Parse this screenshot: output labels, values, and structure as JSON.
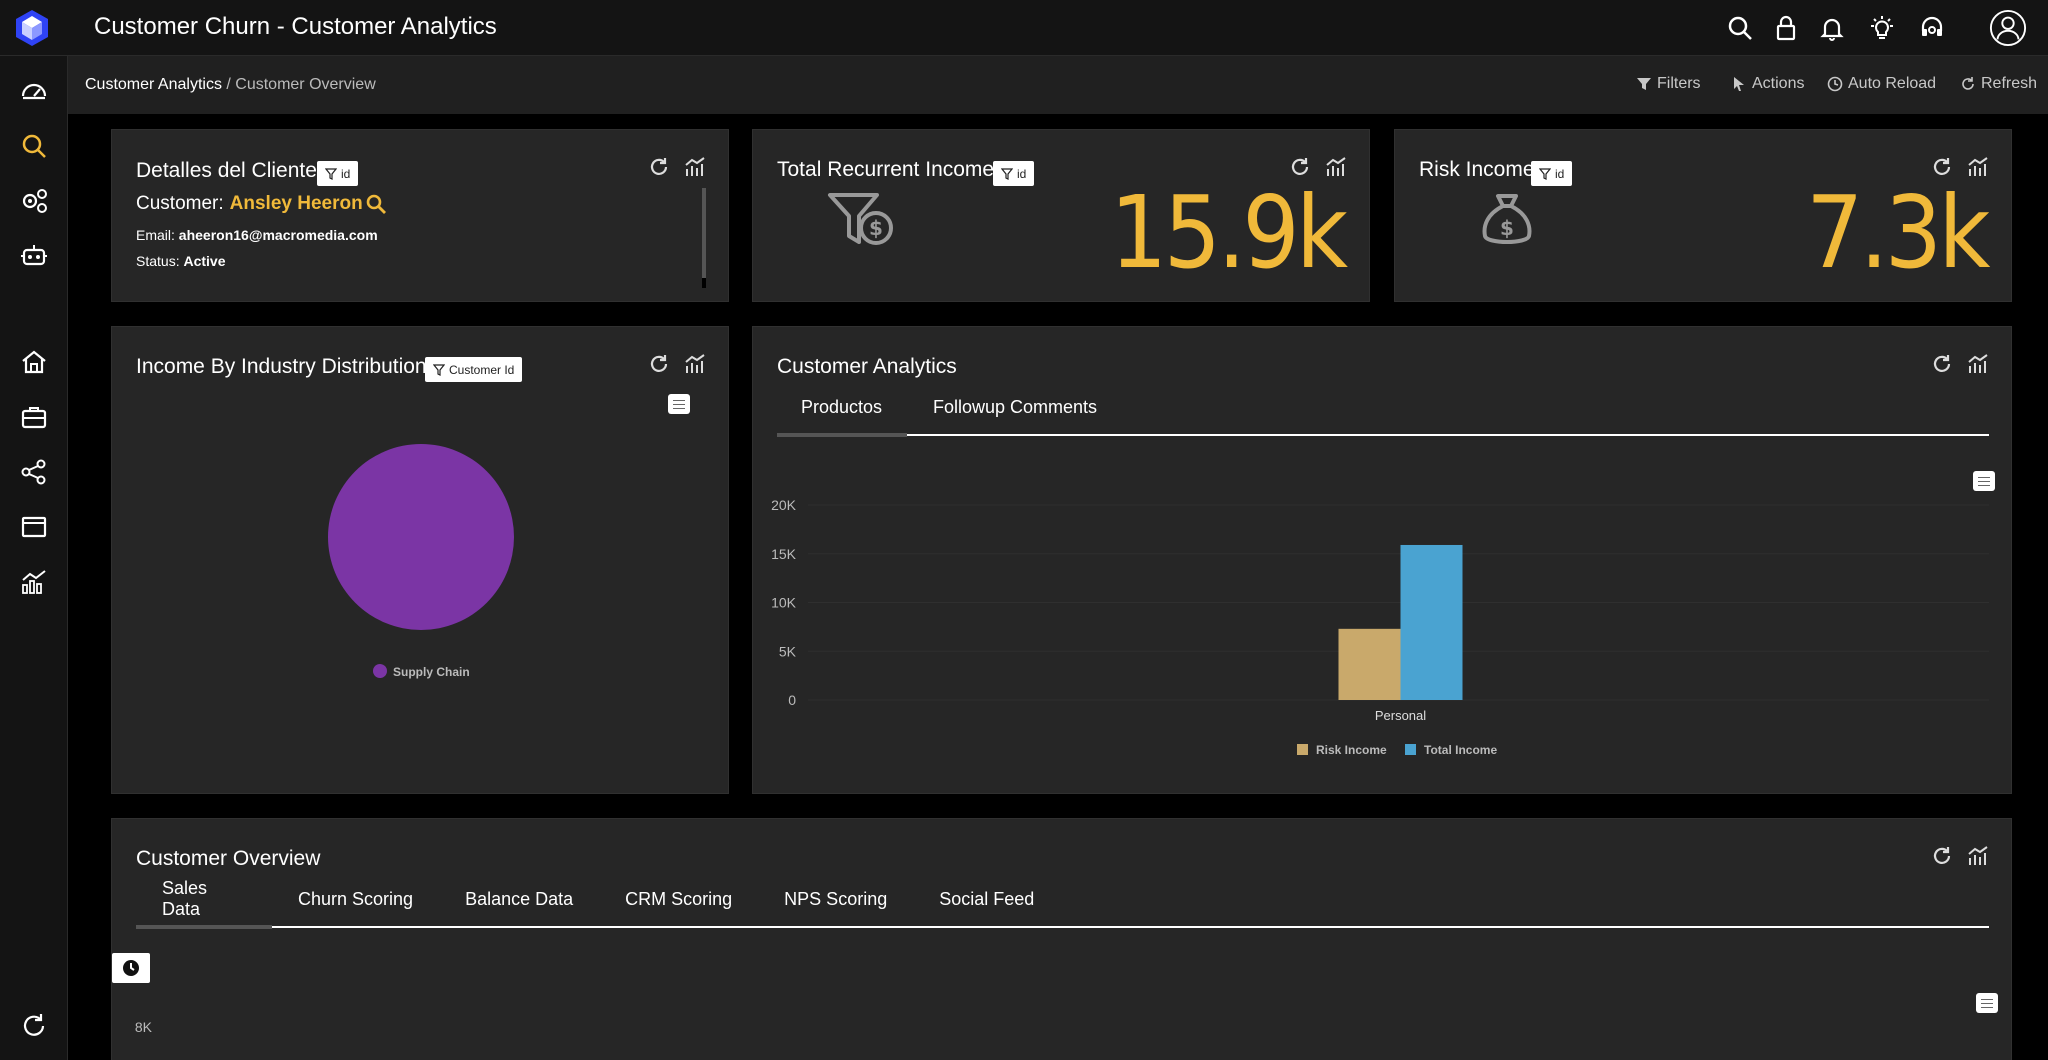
{
  "app": {
    "title": "Customer Churn - Customer Analytics"
  },
  "breadcrumb": {
    "root": "Customer Analytics",
    "separator": " / ",
    "current": "Customer Overview"
  },
  "header_actions": {
    "filters": "Filters",
    "actions": "Actions",
    "auto_reload": "Auto Reload",
    "refresh": "Refresh"
  },
  "customer_card": {
    "title": "Detalles del Cliente",
    "filter": "id",
    "customer_label": "Customer:",
    "customer_name": "Ansley Heeron",
    "email_label": "Email:",
    "email": "aheeron16@macromedia.com",
    "status_label": "Status:",
    "status": "Active"
  },
  "total_income_card": {
    "title": "Total Recurrent Income",
    "filter": "id",
    "value": "15.9k",
    "icon": "money-filter-icon"
  },
  "risk_income_card": {
    "title": "Risk Income",
    "filter": "id",
    "value": "7.3k",
    "icon": "money-bag-icon"
  },
  "industry_card": {
    "title": "Income By Industry Distribution",
    "filter": "Customer Id",
    "chart_data": {
      "type": "pie",
      "labels": [
        "Supply Chain"
      ],
      "values": [
        100
      ],
      "colors": [
        "#7b35a5"
      ],
      "legend_position": "bottom"
    }
  },
  "analytics_card": {
    "title": "Customer Analytics",
    "tabs": [
      "Productos",
      "Followup Comments"
    ],
    "chart_data": {
      "type": "bar",
      "categories": [
        "Personal"
      ],
      "series": [
        {
          "name": "Risk Income",
          "values": [
            7300
          ],
          "color": "#c9a96b"
        },
        {
          "name": "Total Income",
          "values": [
            15900
          ],
          "color": "#4aa3d1"
        }
      ],
      "ylim": [
        0,
        20000
      ],
      "yticks": [
        "0",
        "5K",
        "10K",
        "15K",
        "20K"
      ],
      "legend_position": "bottom"
    }
  },
  "overview_card": {
    "title": "Customer Overview",
    "tabs": [
      "Sales Data",
      "Churn Scoring",
      "Balance Data",
      "CRM Scoring",
      "NPS Scoring",
      "Social Feed"
    ],
    "axis_label": "8K"
  },
  "colors": {
    "accent": "#f0b93a",
    "brand": "#2f43f5"
  }
}
